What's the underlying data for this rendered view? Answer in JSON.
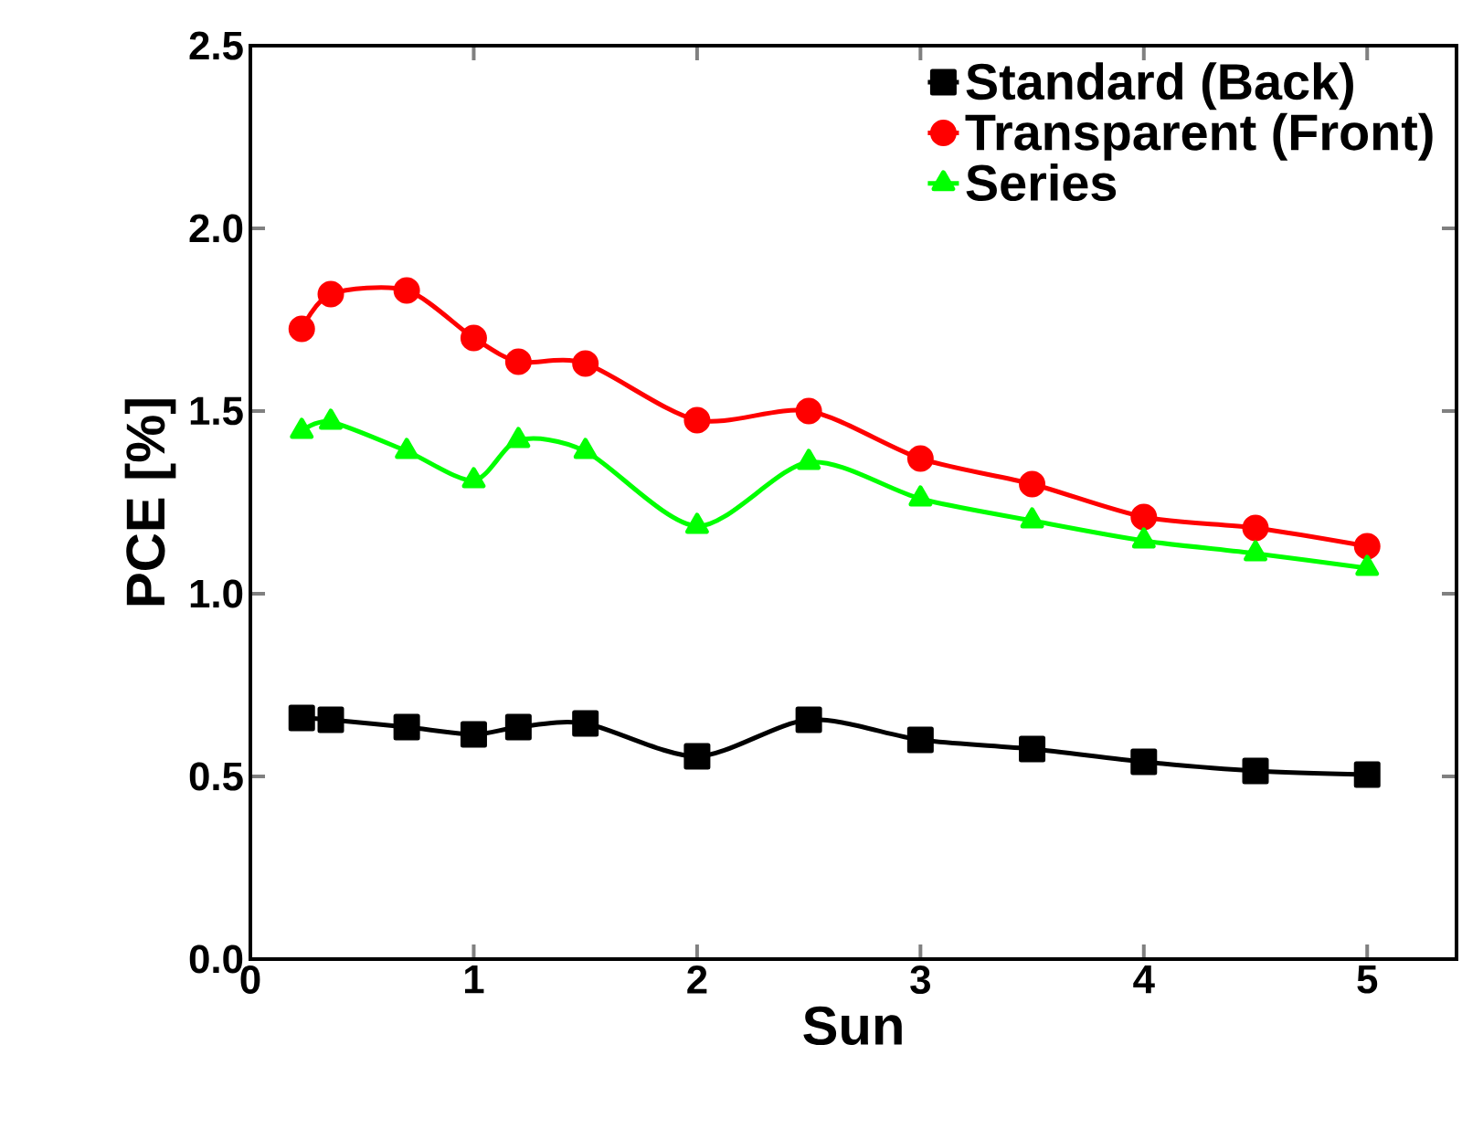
{
  "chart_data": {
    "type": "line",
    "xlabel": "Sun",
    "ylabel": "PCE [%]",
    "x": [
      0.23,
      0.36,
      0.7,
      1,
      1.2,
      1.5,
      2,
      2.5,
      3,
      3.5,
      4,
      4.5,
      5
    ],
    "series": [
      {
        "name": "Standard (Back)",
        "color": "#000000",
        "marker": "square",
        "values": [
          0.66,
          0.655,
          0.635,
          0.615,
          0.635,
          0.645,
          0.555,
          0.655,
          0.6,
          0.575,
          0.54,
          0.515,
          0.505
        ]
      },
      {
        "name": "Transparent (Front)",
        "color": "#ff0000",
        "marker": "circle",
        "values": [
          1.725,
          1.82,
          1.83,
          1.7,
          1.635,
          1.63,
          1.475,
          1.5,
          1.37,
          1.3,
          1.21,
          1.18,
          1.13
        ]
      },
      {
        "name": "Series",
        "color": "#00ff00",
        "marker": "triangle",
        "values": [
          1.445,
          1.47,
          1.39,
          1.31,
          1.42,
          1.39,
          1.185,
          1.36,
          1.26,
          1.2,
          1.145,
          1.11,
          1.07
        ]
      }
    ],
    "xlim": [
      0,
      5.4
    ],
    "ylim": [
      0,
      2.5
    ],
    "xticks": [
      0,
      1,
      2,
      3,
      4,
      5
    ],
    "yticks": [
      {
        "value": 0,
        "label": "0.0"
      },
      {
        "value": 0.5,
        "label": "0.5"
      },
      {
        "value": 1,
        "label": "1.0"
      },
      {
        "value": 1.5,
        "label": "1.5"
      },
      {
        "value": 2,
        "label": "2.0"
      },
      {
        "value": 2.5,
        "label": "2.5"
      }
    ],
    "line_style": "solid",
    "grid": false,
    "legend": "top right"
  }
}
